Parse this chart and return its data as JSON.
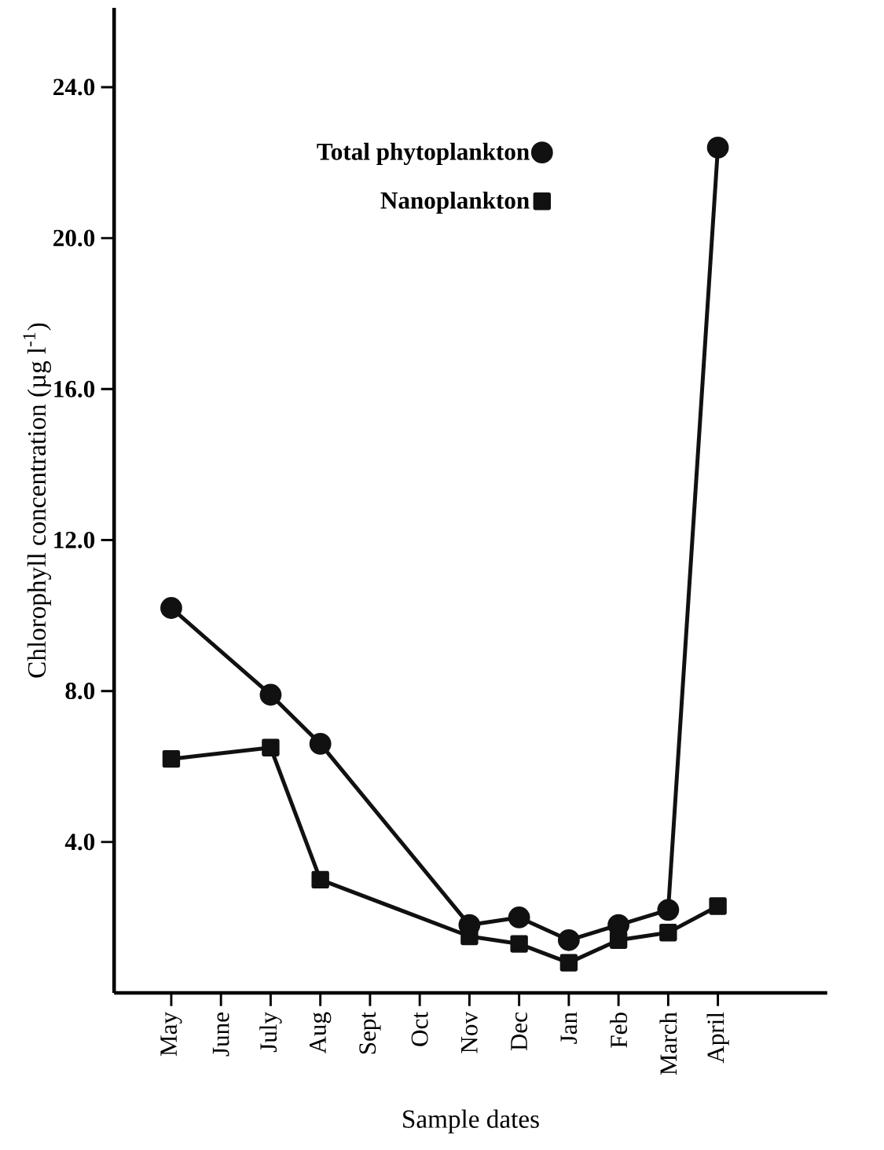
{
  "chart_data": {
    "type": "line",
    "xlabel": "Sample dates",
    "ylabel": "Chlorophyll concentration  (µg l$^{-1}$)",
    "categories": [
      "May",
      "June",
      "July",
      "Aug",
      "Sept",
      "Oct",
      "Nov",
      "Dec",
      "Jan",
      "Feb",
      "March",
      "April"
    ],
    "ylim": [
      0,
      26.1
    ],
    "yticks": [
      {
        "value": 4,
        "label": "4.0"
      },
      {
        "value": 8,
        "label": "8.0"
      },
      {
        "value": 12,
        "label": "12.0"
      },
      {
        "value": 16,
        "label": "16.0"
      },
      {
        "value": 20,
        "label": "20.0"
      },
      {
        "value": 24,
        "label": "24.0"
      }
    ],
    "series": [
      {
        "name": "Total phytoplankton",
        "color": "#111111",
        "marker": "circle",
        "values": [
          10.2,
          null,
          7.9,
          6.6,
          null,
          null,
          1.8,
          2.0,
          1.4,
          1.8,
          2.2,
          22.4
        ]
      },
      {
        "name": "Nanoplankton",
        "color": "#111111",
        "marker": "square",
        "values": [
          6.2,
          null,
          6.5,
          3.0,
          null,
          null,
          1.5,
          1.3,
          0.8,
          1.4,
          1.6,
          2.3
        ]
      }
    ],
    "legend": "top",
    "grid": false,
    "line_style": "solid"
  }
}
